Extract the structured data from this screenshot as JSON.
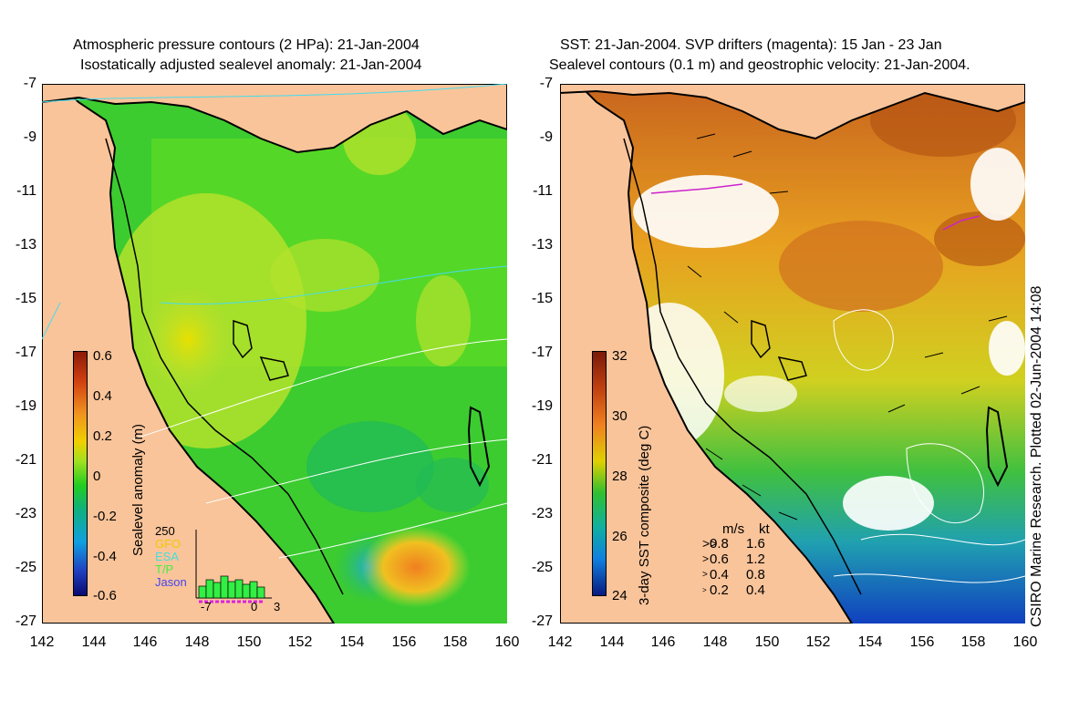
{
  "left_panel": {
    "title_line1": "Atmospheric pressure contours (2 HPa): 21-Jan-2004",
    "title_line2": "Isostatically adjusted sealevel anomaly: 21-Jan-2004",
    "colorbar": {
      "label": "Sealevel anomaly (m)",
      "ticks": [
        "0.6",
        "0.4",
        "0.2",
        "0",
        "-0.2",
        "-0.4",
        "-0.6"
      ],
      "range": [
        -0.6,
        0.6
      ]
    },
    "histogram": {
      "ymax_label": "250",
      "legend": [
        {
          "label": "GFO",
          "color": "#f0c800"
        },
        {
          "label": "ESA",
          "color": "#44dddd"
        },
        {
          "label": "T/P",
          "color": "#44ee44"
        },
        {
          "label": "Jason",
          "color": "#4444ee"
        }
      ],
      "x_ticks": [
        "-7",
        "0",
        "3"
      ]
    }
  },
  "right_panel": {
    "title_line1": "SST: 21-Jan-2004. SVP drifters (magenta): 15 Jan - 23 Jan",
    "title_line2": "Sealevel contours (0.1 m) and geostrophic velocity: 21-Jan-2004.",
    "colorbar": {
      "label": "3-day SST composite (deg C)",
      "ticks": [
        "32",
        "30",
        "28",
        "26",
        "24"
      ],
      "range": [
        24,
        32
      ]
    },
    "velocity_legend": {
      "header_ms": "m/s",
      "header_kt": "kt",
      "rows": [
        {
          "ms": "0.8",
          "kt": "1.6"
        },
        {
          "ms": "0.6",
          "kt": "1.2"
        },
        {
          "ms": "0.4",
          "kt": "0.8"
        },
        {
          "ms": "0.2",
          "kt": "0.4"
        }
      ]
    },
    "credit": "CSIRO Marine Research. Plotted 02-Jun-2004 14:08"
  },
  "axes": {
    "y_ticks": [
      "-7",
      "-9",
      "-11",
      "-13",
      "-15",
      "-17",
      "-19",
      "-21",
      "-23",
      "-25",
      "-27"
    ],
    "x_ticks": [
      "142",
      "144",
      "146",
      "148",
      "150",
      "152",
      "154",
      "156",
      "158",
      "160"
    ],
    "lat_range": [
      -27,
      -7
    ],
    "lon_range": [
      142,
      160
    ]
  },
  "colors": {
    "land": "#f9c49a",
    "sea_green": "#22cc22",
    "coast": "#000000"
  }
}
